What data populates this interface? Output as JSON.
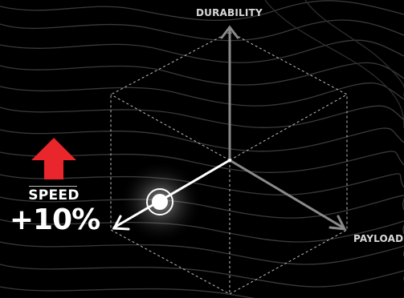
{
  "axes": {
    "durability_label": "DURABILITY",
    "payload_label": "PAYLOAD"
  },
  "boost": {
    "stat": "SPEED",
    "value": "+10%",
    "direction": "up",
    "arrow_color": "#e8262b"
  },
  "colors": {
    "background": "#000000",
    "axis": "#8a8a8a",
    "active_axis": "#ffffff",
    "contour": "#3a3a3a",
    "cube_outline": "#bdbdbd"
  },
  "icons": {
    "boost_arrow": "up-arrow-icon",
    "speed_knob": "knob-icon"
  }
}
